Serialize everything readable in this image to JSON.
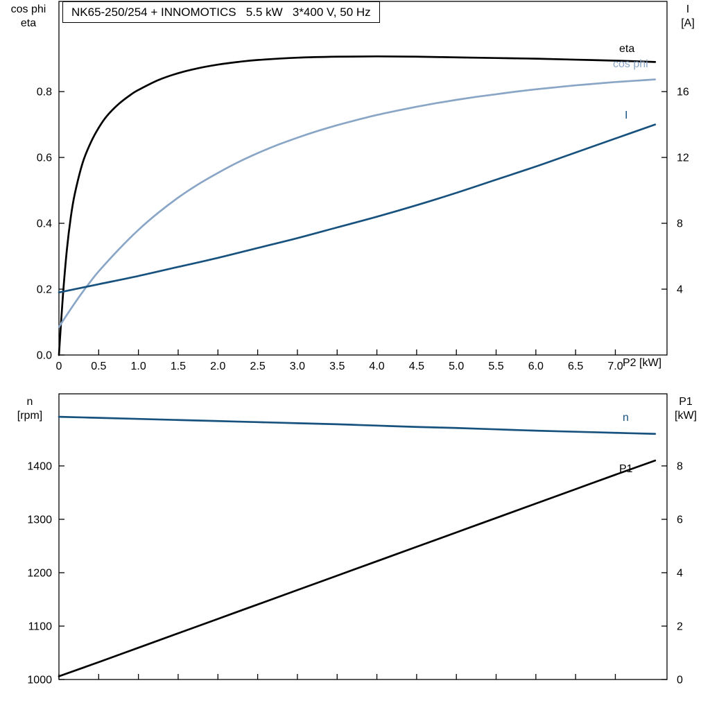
{
  "title_box": {
    "text": "NK65-250/254 + INNOMOTICS   5.5 kW   3*400 V, 50 Hz"
  },
  "colors": {
    "black_curve": "#000000",
    "light_blue_curve": "#8aa6c6",
    "dark_blue_curve": "#17527e",
    "axis": "#000000",
    "background": "#ffffff"
  },
  "chart_data": [
    {
      "id": "electrical",
      "type": "line",
      "grid": false,
      "x": {
        "label": "P2 [kW]",
        "min": 0,
        "max": 7.65,
        "ticks": [
          0,
          0.5,
          1,
          1.5,
          2,
          2.5,
          3,
          3.5,
          4,
          4.5,
          5,
          5.5,
          6,
          6.5,
          7
        ],
        "tick_labels": [
          "0",
          "0.5",
          "1.0",
          "1.5",
          "2.0",
          "2.5",
          "3.0",
          "3.5",
          "4.0",
          "4.5",
          "5.0",
          "5.5",
          "6.0",
          "6.5",
          "7.0"
        ],
        "show_tick_labels": true
      },
      "y_left": {
        "title_lines": [
          "cos phi",
          "eta"
        ],
        "min": 0,
        "max": 1.074,
        "ticks": [
          0,
          0.2,
          0.4,
          0.6,
          0.8
        ],
        "tick_labels": [
          "0.0",
          "0.2",
          "0.4",
          "0.6",
          "0.8"
        ]
      },
      "y_right": {
        "title_lines": [
          "I",
          "[A]"
        ],
        "min": 0,
        "max": 21.48,
        "ticks": [
          4,
          8,
          12,
          16
        ],
        "tick_labels": [
          "4",
          "8",
          "12",
          "16"
        ]
      },
      "series": [
        {
          "name": "eta",
          "label": "eta",
          "axis": "left",
          "color": "#000000",
          "points": [
            [
              0,
              0
            ],
            [
              0.05,
              0.18
            ],
            [
              0.1,
              0.32
            ],
            [
              0.15,
              0.42
            ],
            [
              0.2,
              0.49
            ],
            [
              0.3,
              0.585
            ],
            [
              0.4,
              0.645
            ],
            [
              0.5,
              0.69
            ],
            [
              0.6,
              0.725
            ],
            [
              0.75,
              0.762
            ],
            [
              0.9,
              0.79
            ],
            [
              1,
              0.805
            ],
            [
              1.25,
              0.835
            ],
            [
              1.5,
              0.856
            ],
            [
              1.75,
              0.871
            ],
            [
              2,
              0.882
            ],
            [
              2.25,
              0.89
            ],
            [
              2.5,
              0.896
            ],
            [
              3,
              0.903
            ],
            [
              3.5,
              0.906
            ],
            [
              4,
              0.907
            ],
            [
              4.5,
              0.906
            ],
            [
              5,
              0.904
            ],
            [
              5.5,
              0.902
            ],
            [
              6,
              0.9
            ],
            [
              6.5,
              0.897
            ],
            [
              7,
              0.894
            ],
            [
              7.5,
              0.89
            ]
          ]
        },
        {
          "name": "cos_phi",
          "label": "cos phi",
          "axis": "left",
          "color": "#8aa6c6",
          "points": [
            [
              0,
              0.085
            ],
            [
              0.1,
              0.122
            ],
            [
              0.2,
              0.158
            ],
            [
              0.3,
              0.192
            ],
            [
              0.4,
              0.224
            ],
            [
              0.5,
              0.254
            ],
            [
              0.75,
              0.32
            ],
            [
              1,
              0.38
            ],
            [
              1.25,
              0.432
            ],
            [
              1.5,
              0.478
            ],
            [
              1.75,
              0.518
            ],
            [
              2,
              0.553
            ],
            [
              2.25,
              0.585
            ],
            [
              2.5,
              0.613
            ],
            [
              2.75,
              0.638
            ],
            [
              3,
              0.66
            ],
            [
              3.25,
              0.68
            ],
            [
              3.5,
              0.698
            ],
            [
              3.75,
              0.714
            ],
            [
              4,
              0.729
            ],
            [
              4.25,
              0.742
            ],
            [
              4.5,
              0.754
            ],
            [
              4.75,
              0.765
            ],
            [
              5,
              0.775
            ],
            [
              5.25,
              0.784
            ],
            [
              5.5,
              0.792
            ],
            [
              5.75,
              0.8
            ],
            [
              6,
              0.807
            ],
            [
              6.25,
              0.813
            ],
            [
              6.5,
              0.819
            ],
            [
              6.75,
              0.824
            ],
            [
              7,
              0.829
            ],
            [
              7.25,
              0.833
            ],
            [
              7.5,
              0.837
            ]
          ]
        },
        {
          "name": "current",
          "label": "I",
          "axis": "right",
          "color": "#17527e",
          "points": [
            [
              0,
              3.8
            ],
            [
              0.5,
              4.3
            ],
            [
              1,
              4.8
            ],
            [
              1.5,
              5.35
            ],
            [
              2,
              5.9
            ],
            [
              2.5,
              6.5
            ],
            [
              3,
              7.1
            ],
            [
              3.5,
              7.75
            ],
            [
              4,
              8.4
            ],
            [
              4.5,
              9.1
            ],
            [
              5,
              9.85
            ],
            [
              5.5,
              10.65
            ],
            [
              6,
              11.45
            ],
            [
              6.5,
              12.3
            ],
            [
              7,
              13.15
            ],
            [
              7.5,
              14.0
            ]
          ]
        }
      ]
    },
    {
      "id": "mechanical",
      "type": "line",
      "grid": false,
      "x": {
        "label": "",
        "min": 0,
        "max": 7.65,
        "ticks": [
          0,
          0.5,
          1,
          1.5,
          2,
          2.5,
          3,
          3.5,
          4,
          4.5,
          5,
          5.5,
          6,
          6.5,
          7
        ],
        "tick_labels": [],
        "show_tick_labels": false
      },
      "y_left": {
        "title_lines": [
          "n",
          "[rpm]"
        ],
        "min": 1000,
        "max": 1535,
        "ticks": [
          1000,
          1100,
          1200,
          1300,
          1400
        ],
        "tick_labels": [
          "1000",
          "1100",
          "1200",
          "1300",
          "1400"
        ]
      },
      "y_right": {
        "title_lines": [
          "P1",
          "[kW]"
        ],
        "min": 0,
        "max": 10.7,
        "ticks": [
          0,
          2,
          4,
          6,
          8
        ],
        "tick_labels": [
          "0",
          "2",
          "4",
          "6",
          "8"
        ]
      },
      "series": [
        {
          "name": "speed",
          "label": "n",
          "axis": "left",
          "color": "#17527e",
          "points": [
            [
              0,
              1492
            ],
            [
              0.5,
              1490
            ],
            [
              1,
              1488
            ],
            [
              1.5,
              1486
            ],
            [
              2,
              1484
            ],
            [
              2.5,
              1482
            ],
            [
              3,
              1480
            ],
            [
              3.5,
              1478
            ],
            [
              4,
              1475.5
            ],
            [
              4.5,
              1473
            ],
            [
              5,
              1471
            ],
            [
              5.5,
              1468.5
            ],
            [
              6,
              1466
            ],
            [
              6.5,
              1464
            ],
            [
              7,
              1462
            ],
            [
              7.5,
              1460
            ]
          ]
        },
        {
          "name": "p1",
          "label": "P1",
          "axis": "right",
          "color": "#000000",
          "points": [
            [
              0,
              0.12
            ],
            [
              0.5,
              0.65
            ],
            [
              1,
              1.19
            ],
            [
              1.5,
              1.73
            ],
            [
              2,
              2.27
            ],
            [
              2.5,
              2.81
            ],
            [
              3,
              3.35
            ],
            [
              3.5,
              3.89
            ],
            [
              4,
              4.43
            ],
            [
              4.5,
              4.97
            ],
            [
              5,
              5.51
            ],
            [
              5.5,
              6.05
            ],
            [
              6,
              6.59
            ],
            [
              6.5,
              7.13
            ],
            [
              7,
              7.67
            ],
            [
              7.5,
              8.2
            ]
          ]
        }
      ]
    }
  ]
}
